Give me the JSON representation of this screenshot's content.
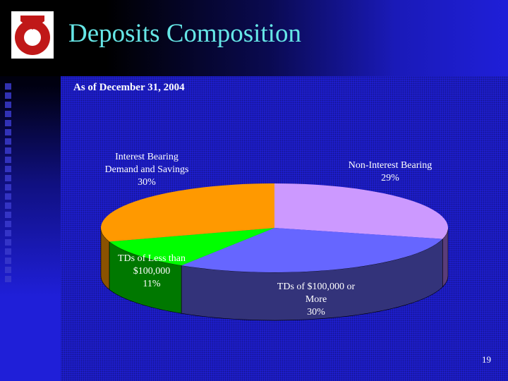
{
  "title": "Deposits Composition",
  "subtitle": "As of December 31, 2004",
  "page_number": "19",
  "icons": {
    "logo": "company-logo"
  },
  "chart_data": {
    "type": "pie",
    "three_d": true,
    "title": "Deposits Composition",
    "subtitle": "As of December 31, 2004",
    "categories": [
      "Non-Interest Bearing",
      "TDs of $100,000 or More",
      "TDs of Less than $100,000",
      "Interest Bearing Demand and Savings"
    ],
    "values": [
      29,
      30,
      11,
      30
    ],
    "unit": "%",
    "colors": [
      "#cc99ff",
      "#6666ff",
      "#00ff00",
      "#ff9900"
    ],
    "side_colors": [
      "#5a3c7a",
      "#33337a",
      "#007800",
      "#8a5200"
    ],
    "labels": [
      {
        "lines": [
          "Non-Interest Bearing"
        ],
        "pct": "29%"
      },
      {
        "lines": [
          "TDs of $100,000 or",
          "More"
        ],
        "pct": "30%"
      },
      {
        "lines": [
          "TDs of Less than",
          "$100,000"
        ],
        "pct": "11%"
      },
      {
        "lines": [
          "Interest Bearing",
          "Demand and Savings"
        ],
        "pct": "30%"
      }
    ],
    "legend": "none"
  }
}
